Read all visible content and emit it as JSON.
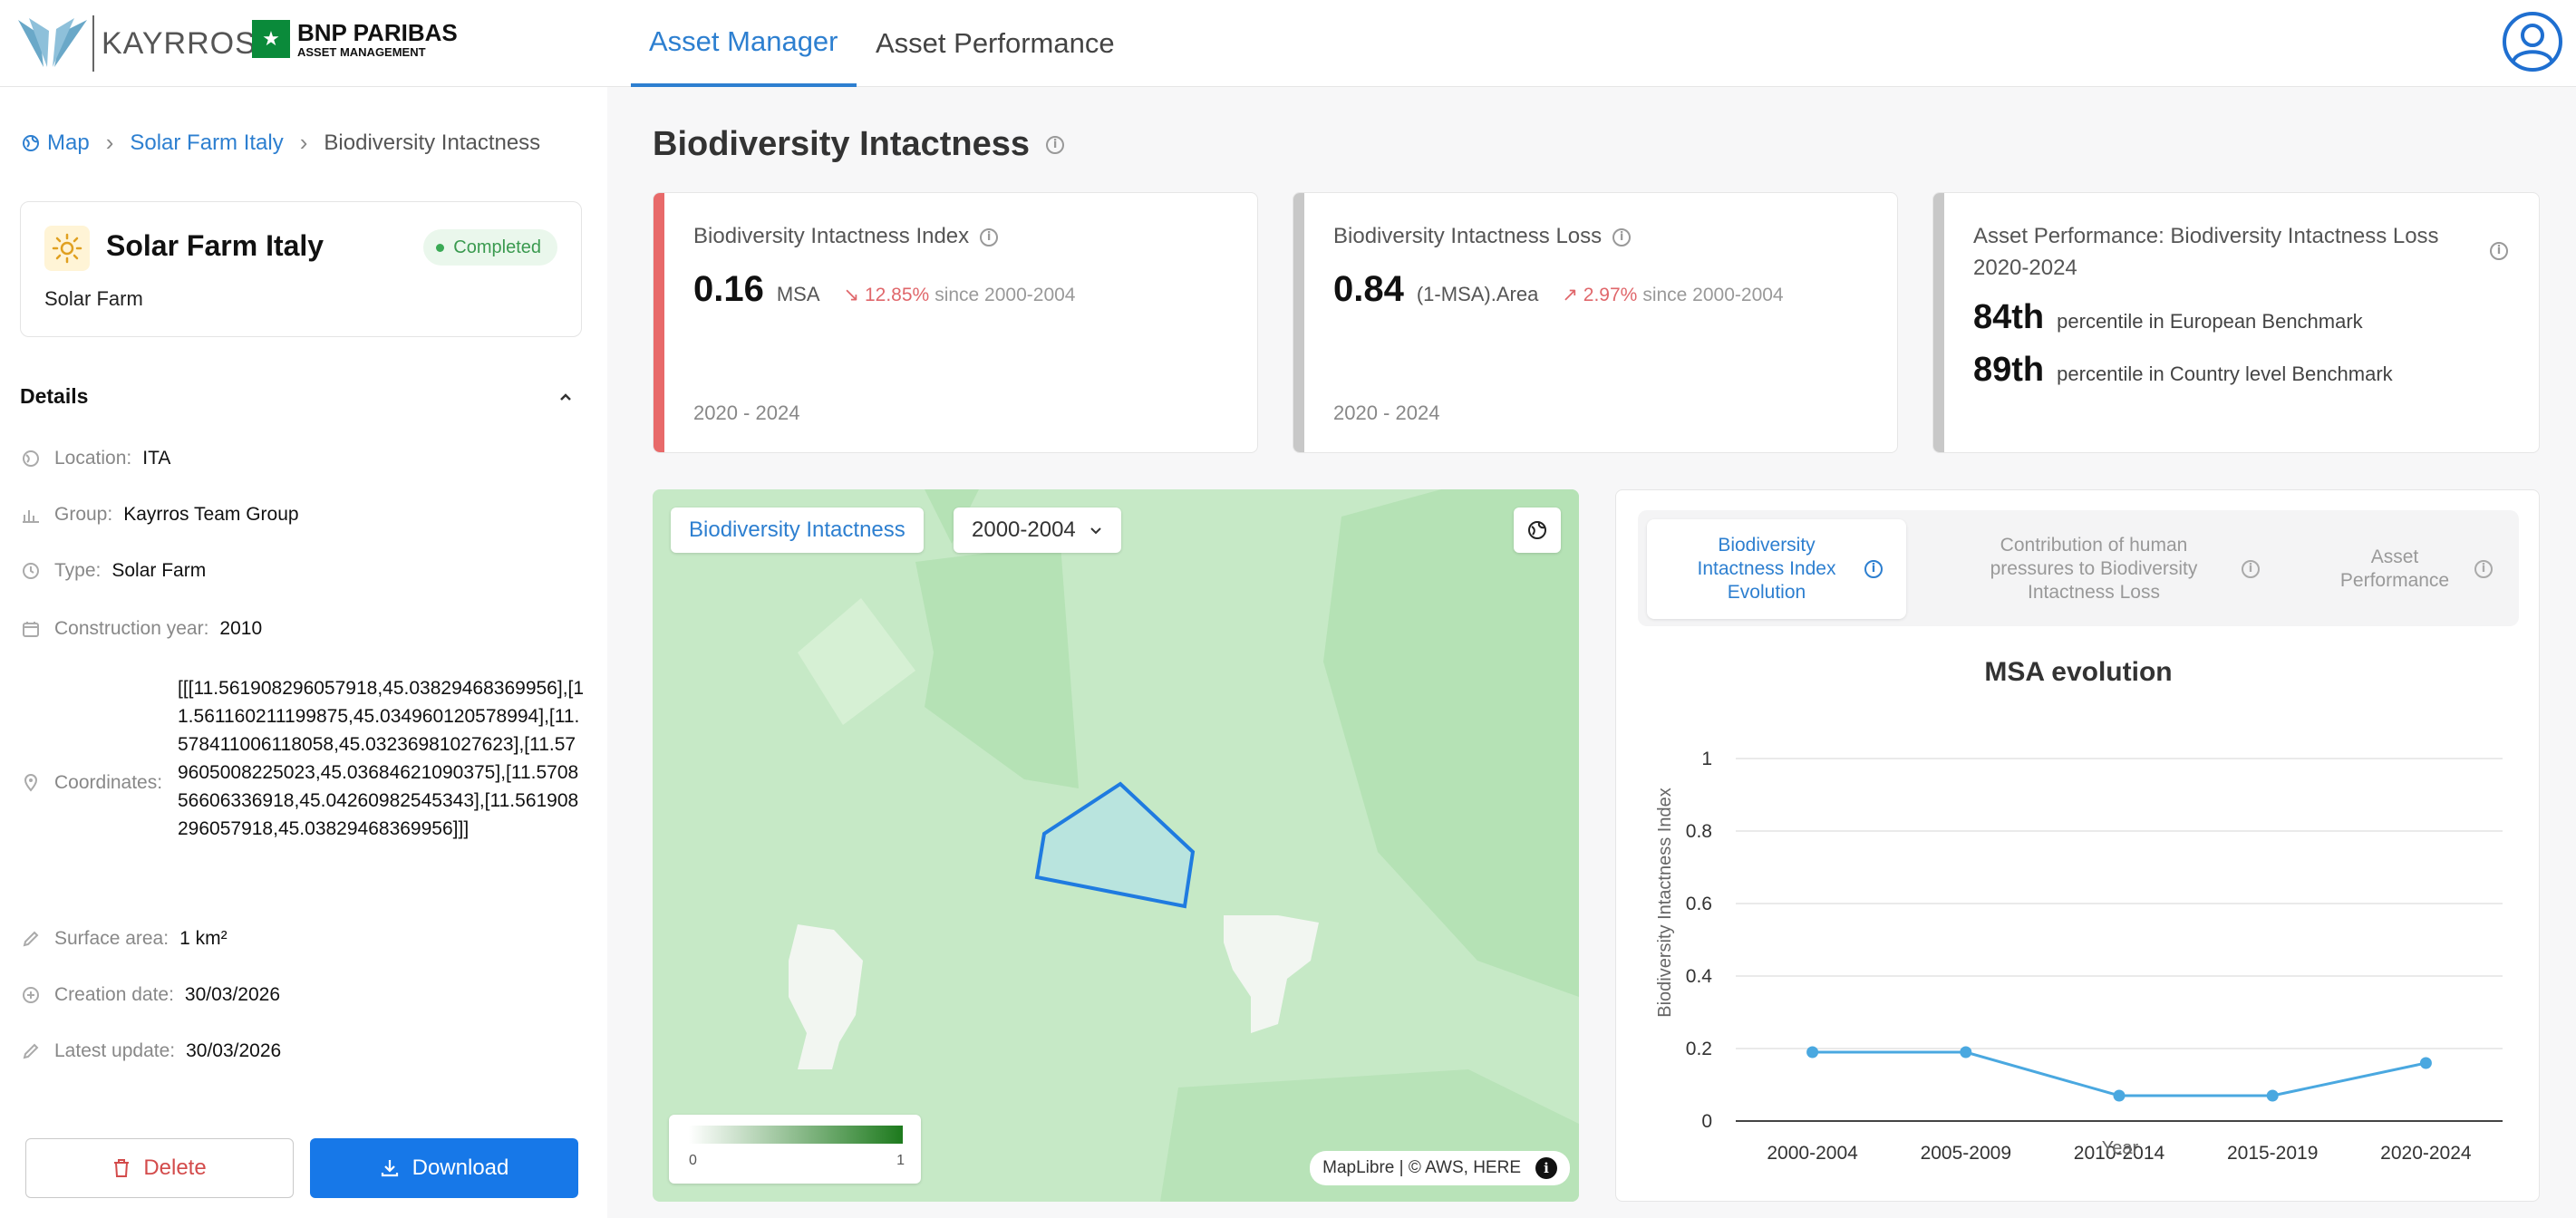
{
  "topnav": {
    "brand_name": "KAYRROS",
    "partner_line1": "BNP PARIBAS",
    "partner_line2": "ASSET MANAGEMENT",
    "tabs": [
      {
        "label": "Asset Manager",
        "active": true
      },
      {
        "label": "Asset Performance",
        "active": false
      }
    ],
    "user_icon": "user-circle-icon"
  },
  "breadcrumb": {
    "items": [
      "Map",
      "Solar Farm Italy",
      "Biodiversity Intactness"
    ]
  },
  "asset": {
    "name": "Solar Farm Italy",
    "type": "Solar Farm",
    "status": "Completed",
    "icon": "sun-icon"
  },
  "details": {
    "heading": "Details",
    "location_label": "Location:",
    "location": "ITA",
    "group_label": "Group:",
    "group": "Kayrros Team Group",
    "type_label": "Type:",
    "type": "Solar Farm",
    "construction_label": "Construction year:",
    "construction_year": "2010",
    "coordinates_label": "Coordinates:",
    "coordinates": "[[[11.561908296057918,45.03829468369956],[11.561160211199875,45.034960120578994],[11.578411006118058,45.03236981027623],[11.579605008225023,45.03684621090375],[11.570856606336918,45.04260982545343],[11.561908296057918,45.03829468369956]]]",
    "surface_label": "Surface area:",
    "surface": "1 km²",
    "creation_label": "Creation date:",
    "creation": "30/03/2026",
    "update_label": "Latest update:",
    "update": "30/03/2026"
  },
  "actions": {
    "delete_label": "Delete",
    "download_label": "Download"
  },
  "page": {
    "title": "Biodiversity Intactness"
  },
  "kpis": {
    "index": {
      "title": "Biodiversity Intactness Index",
      "value": "0.16",
      "unit": "MSA",
      "delta": "↘ 12.85%",
      "since": "since 2000-2004",
      "period": "2020 - 2024",
      "accent": "#e86a6a"
    },
    "loss": {
      "title": "Biodiversity Intactness Loss",
      "value": "0.84",
      "unit": "(1-MSA).Area",
      "delta": "↗ 2.97%",
      "since": "since 2000-2004",
      "period": "2020 - 2024",
      "accent": "#c8c8c8"
    },
    "performance": {
      "title": "Asset Performance: Biodiversity Intactness Loss 2020-2024",
      "p1_value": "84th",
      "p1_label": "percentile in European Benchmark",
      "p2_value": "89th",
      "p2_label": "percentile in Country level Benchmark",
      "accent": "#c8c8c8"
    }
  },
  "map": {
    "layer_label": "Biodiversity Intactness",
    "period_select": "2000-2004",
    "globe_icon": "globe-icon",
    "legend_min": "0",
    "legend_max": "1",
    "attribution": "MapLibre | © AWS, HERE",
    "info_icon": "info-icon"
  },
  "chart_tabs": [
    {
      "label": "Biodiversity Intactness Index Evolution",
      "active": true
    },
    {
      "label": "Contribution of human pressures to Biodiversity Intactness Loss",
      "active": false
    },
    {
      "label": "Asset Performance",
      "active": false
    }
  ],
  "chart_data": {
    "type": "line",
    "title": "MSA evolution",
    "xlabel": "Year",
    "ylabel": "Biodiversity Intactness Index",
    "categories": [
      "2000-2004",
      "2005-2009",
      "2010-2014",
      "2015-2019",
      "2020-2024"
    ],
    "series": [
      {
        "values": [
          0.19,
          0.19,
          0.07,
          0.07,
          0.16
        ]
      }
    ],
    "ylim": [
      0,
      1
    ],
    "yticks": [
      0,
      0.2,
      0.4,
      0.6,
      0.8,
      1
    ],
    "ytick_labels": [
      "0",
      "0.2",
      "0.4",
      "0.6",
      "0.8",
      "1"
    ],
    "grid": true,
    "color": "#4aa8e0"
  }
}
